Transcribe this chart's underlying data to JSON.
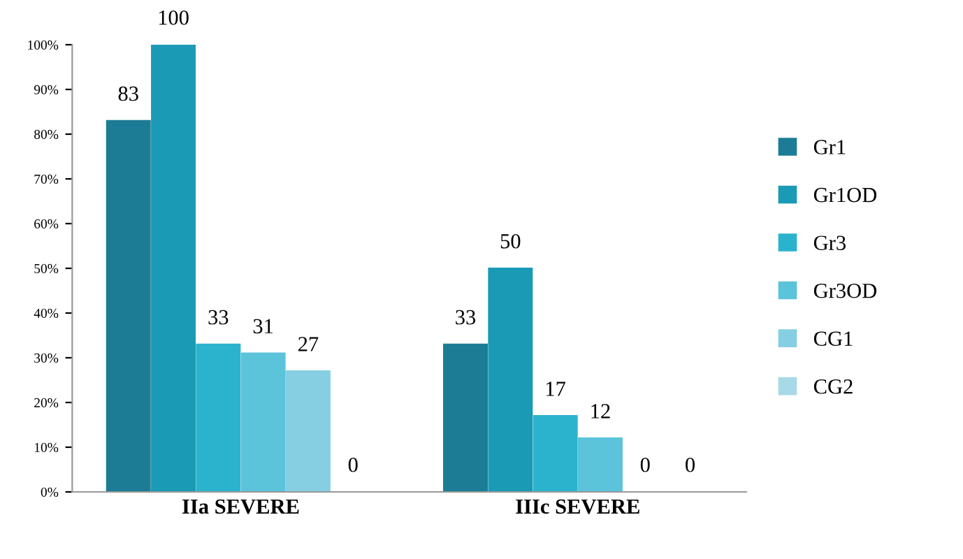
{
  "chart_data": {
    "type": "bar",
    "categories": [
      "IIa SEVERE",
      "IIIc SEVERE"
    ],
    "series": [
      {
        "name": "Gr1",
        "color": "#1d7c95",
        "values": [
          83,
          33
        ]
      },
      {
        "name": "Gr1OD",
        "color": "#1b9ab6",
        "values": [
          100,
          50
        ]
      },
      {
        "name": "Gr3",
        "color": "#2bb3cd",
        "values": [
          33,
          17
        ]
      },
      {
        "name": "Gr3OD",
        "color": "#5bc3da",
        "values": [
          31,
          12
        ]
      },
      {
        "name": "CG1",
        "color": "#86cfe3",
        "values": [
          27,
          0
        ]
      },
      {
        "name": "CG2",
        "color": "#a8d9e7",
        "values": [
          0,
          0
        ]
      }
    ],
    "ylim": [
      0,
      100
    ],
    "yticks": [
      {
        "value": 0,
        "label": "0%"
      },
      {
        "value": 10,
        "label": "10%"
      },
      {
        "value": 20,
        "label": "20%"
      },
      {
        "value": 30,
        "label": "30%"
      },
      {
        "value": 40,
        "label": "40%"
      },
      {
        "value": 50,
        "label": "50%"
      },
      {
        "value": 60,
        "label": "60%"
      },
      {
        "value": 70,
        "label": "70%"
      },
      {
        "value": 80,
        "label": "80%"
      },
      {
        "value": 90,
        "label": "90%"
      },
      {
        "value": 100,
        "label": "100%"
      }
    ],
    "data_labels": true,
    "grid": false,
    "legend": "right"
  }
}
